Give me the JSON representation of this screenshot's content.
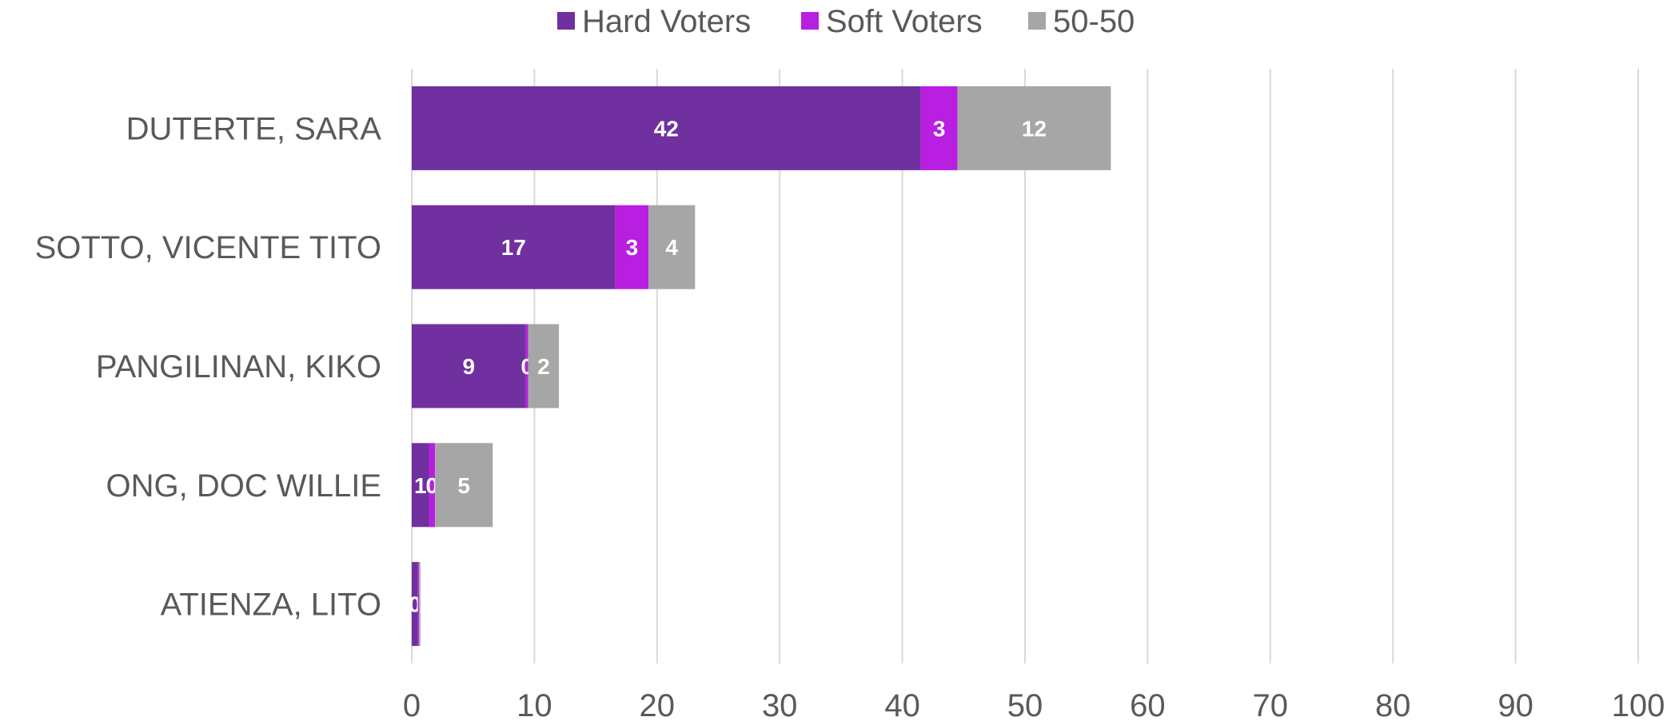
{
  "chart_data": {
    "type": "bar",
    "orientation": "horizontal",
    "stacked": true,
    "title": "",
    "xlabel": "",
    "ylabel": "",
    "categories": [
      "DUTERTE, SARA",
      "SOTTO, VICENTE TITO",
      "PANGILINAN, KIKO",
      "ONG, DOC WILLIE",
      "ATIENZA, LITO"
    ],
    "series": [
      {
        "name": "Hard Voters",
        "color": "#7030a0",
        "values": [
          41.5,
          16.6,
          9.3,
          1.4,
          0.5
        ],
        "labels": [
          "42",
          "17",
          "9",
          "1",
          "0"
        ]
      },
      {
        "name": "Soft Voters",
        "color": "#b81fe0",
        "values": [
          3.0,
          2.7,
          0.2,
          0.5,
          0.1
        ],
        "labels": [
          "3",
          "3",
          "0",
          "0",
          ""
        ]
      },
      {
        "name": "50-50",
        "color": "#a6a6a6",
        "values": [
          12.5,
          3.8,
          2.5,
          4.7,
          0.1
        ],
        "labels": [
          "12",
          "4",
          "2",
          "5",
          ""
        ]
      }
    ],
    "xlim": [
      0,
      100
    ],
    "xticks": [
      "0",
      "10",
      "20",
      "30",
      "40",
      "50",
      "60",
      "70",
      "80",
      "90",
      "100"
    ],
    "grid": true,
    "legend_position": "top"
  }
}
